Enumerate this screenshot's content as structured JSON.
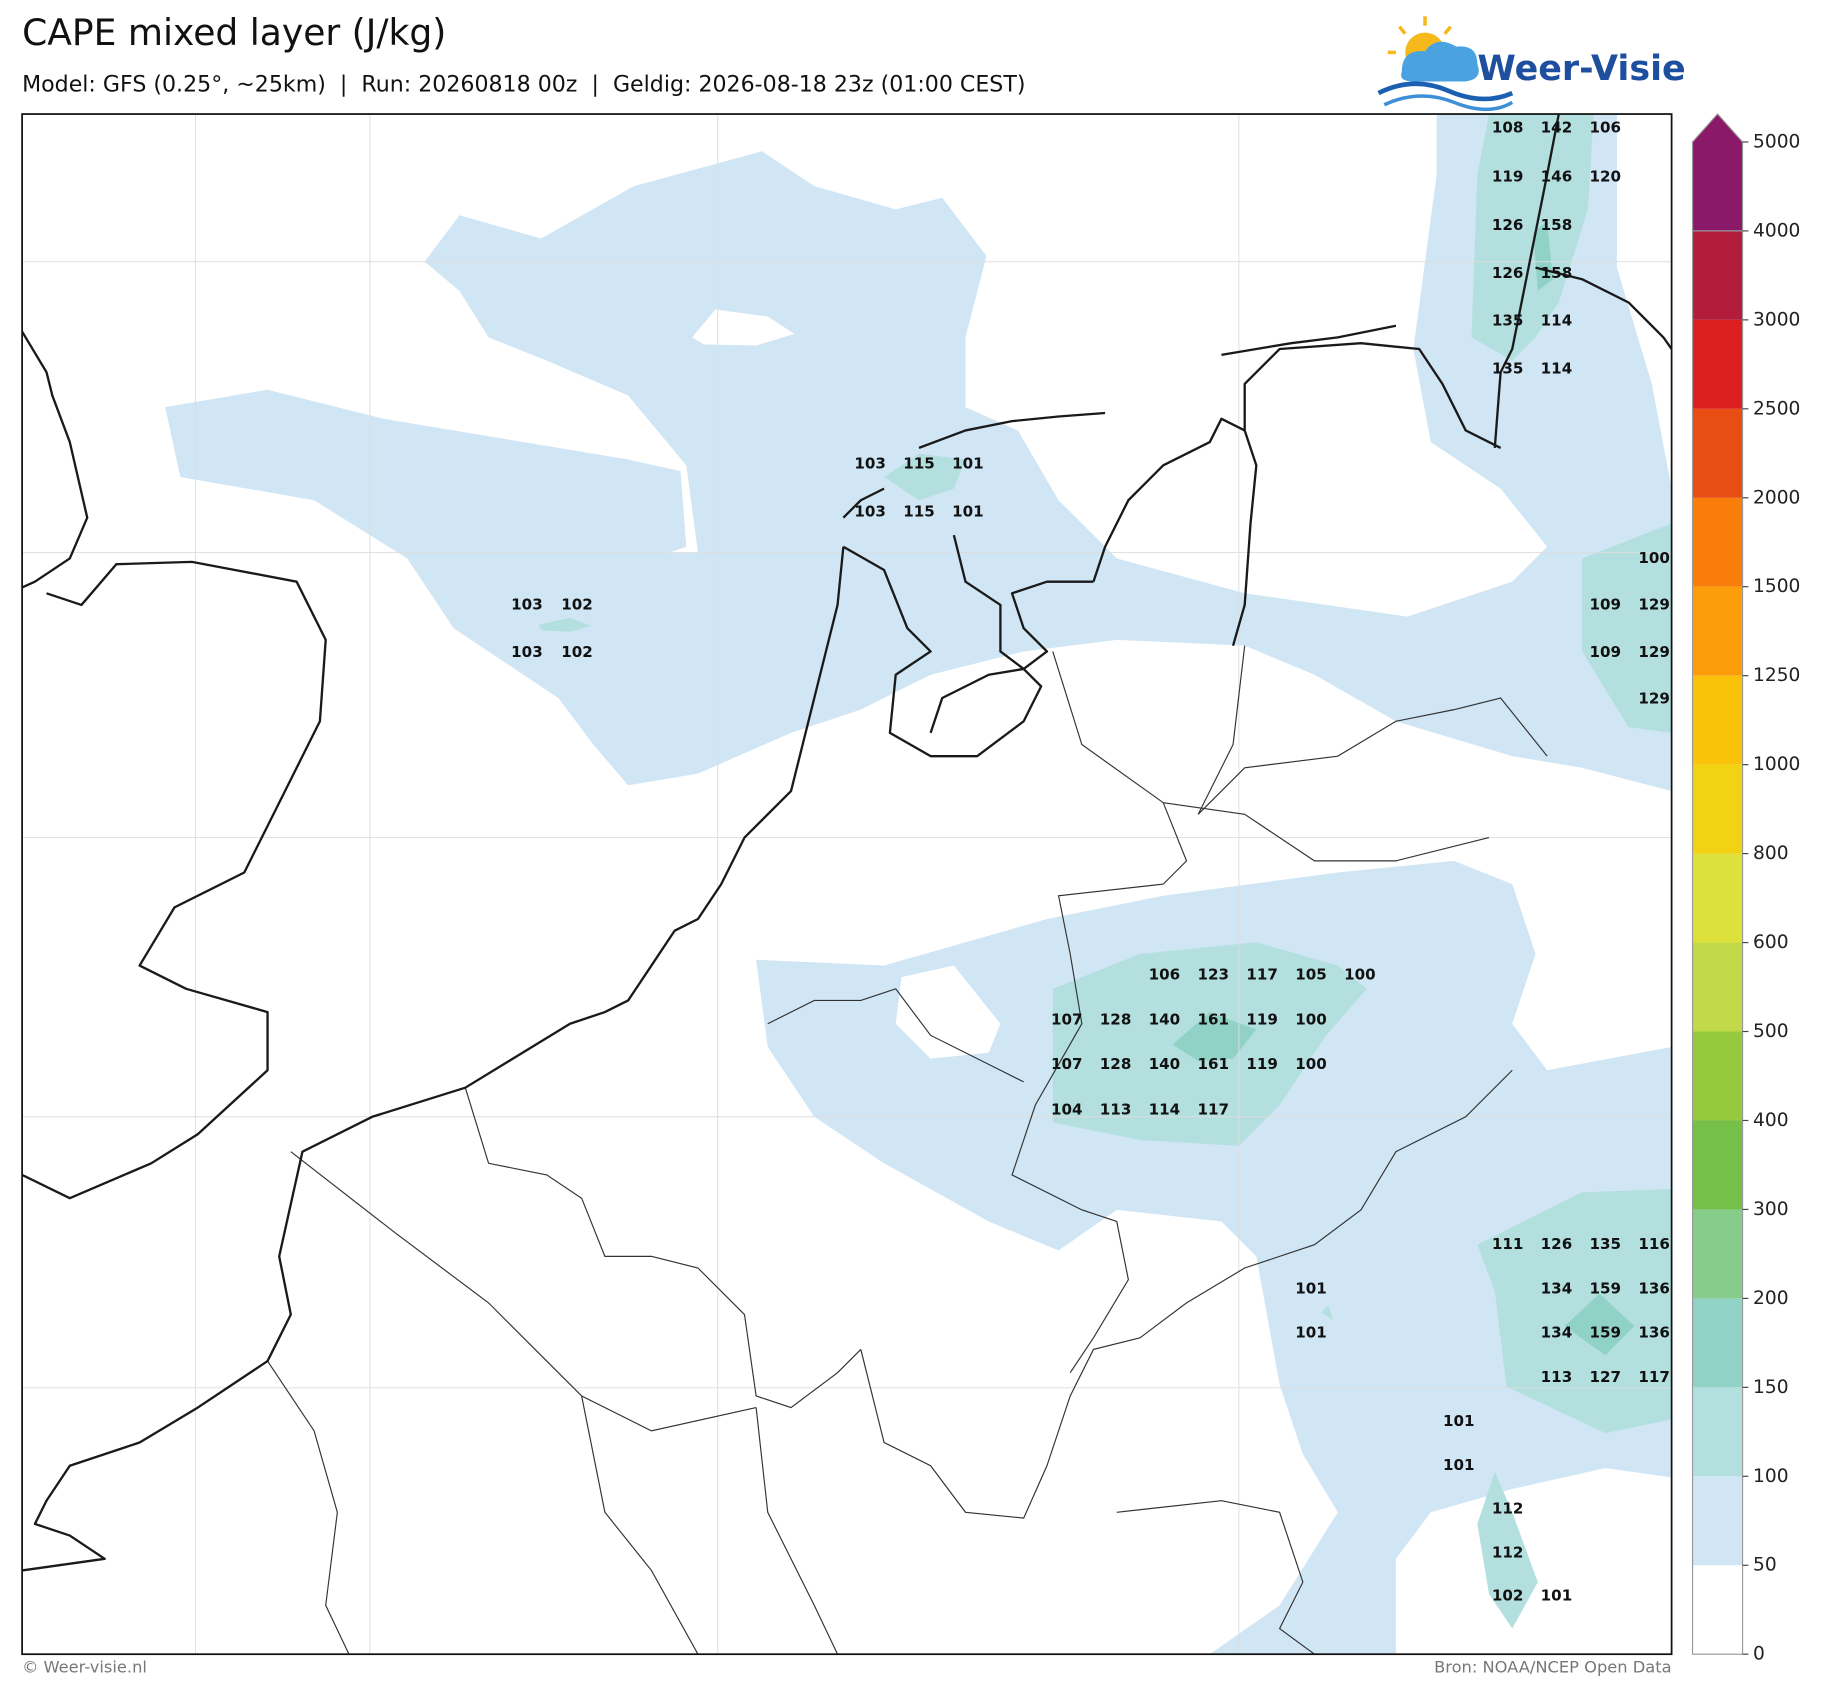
{
  "header": {
    "title": "CAPE mixed layer (J/kg)",
    "subtitle": "Model: GFS (0.25°, ~25km)  |  Run: 20260818 00z  |  Geldig: 2026-08-18 23z (01:00 CEST)",
    "logo": "Weer-Visie"
  },
  "labels": [
    108,
    142,
    106,
    119,
    146,
    120,
    126,
    158,
    126,
    158,
    135,
    114,
    135,
    114,
    103,
    115,
    101,
    103,
    115,
    101,
    100,
    109,
    129,
    103,
    102,
    109,
    129,
    103,
    102,
    129,
    106,
    123,
    117,
    105,
    100,
    107,
    128,
    140,
    161,
    119,
    100,
    107,
    128,
    140,
    161,
    119,
    100,
    104,
    113,
    114,
    117,
    111,
    126,
    135,
    116,
    101,
    134,
    159,
    136,
    101,
    134,
    159,
    136,
    113,
    127,
    117,
    101,
    101,
    112,
    112,
    102,
    101
  ],
  "colorbar": {
    "ticks": [
      0,
      50,
      100,
      150,
      200,
      300,
      400,
      500,
      600,
      800,
      1000,
      1250,
      1500,
      2000,
      2500,
      3000,
      4000,
      5000
    ],
    "colors": [
      "#ffffff",
      "#d0e6f5",
      "#b3dfdf",
      "#90d3c6",
      "#86cc8a",
      "#76c04a",
      "#96c93e",
      "#c2d94a",
      "#dee03c",
      "#f2d313",
      "#fbc20a",
      "#fb9e0a",
      "#f97d0b",
      "#e84d14",
      "#dc1f1f",
      "#b41c3b",
      "#8a1a69"
    ]
  },
  "footer": {
    "left": "© Weer-visie.nl",
    "right": "Bron: NOAA/NCEP Open Data"
  }
}
